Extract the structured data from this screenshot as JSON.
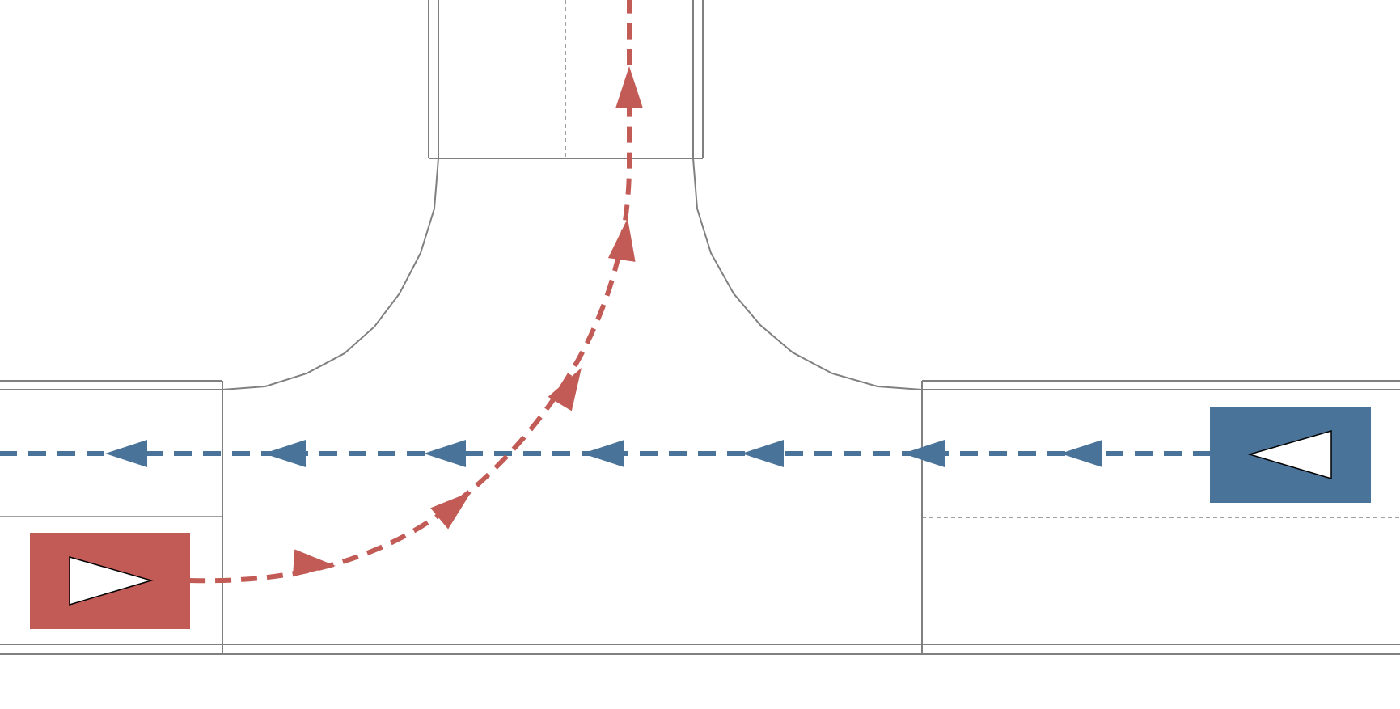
{
  "diagram": {
    "type": "traffic-scenario",
    "layout": "t-junction",
    "vehicles": [
      {
        "id": "ego",
        "color": "#c25b56",
        "heading": "east",
        "maneuver": "left-turn-to-north"
      },
      {
        "id": "oncoming",
        "color": "#4a7399",
        "heading": "west",
        "maneuver": "straight"
      }
    ],
    "paths": [
      {
        "id": "ego-path",
        "color": "#c25b56",
        "style": "dashed",
        "arrow_count": 5
      },
      {
        "id": "oncoming-path",
        "color": "#4a7399",
        "style": "dashed",
        "arrow_count": 7
      }
    ],
    "icons": {
      "direction_marker": "triangle-icon",
      "path_arrow": "arrowhead-icon"
    }
  }
}
